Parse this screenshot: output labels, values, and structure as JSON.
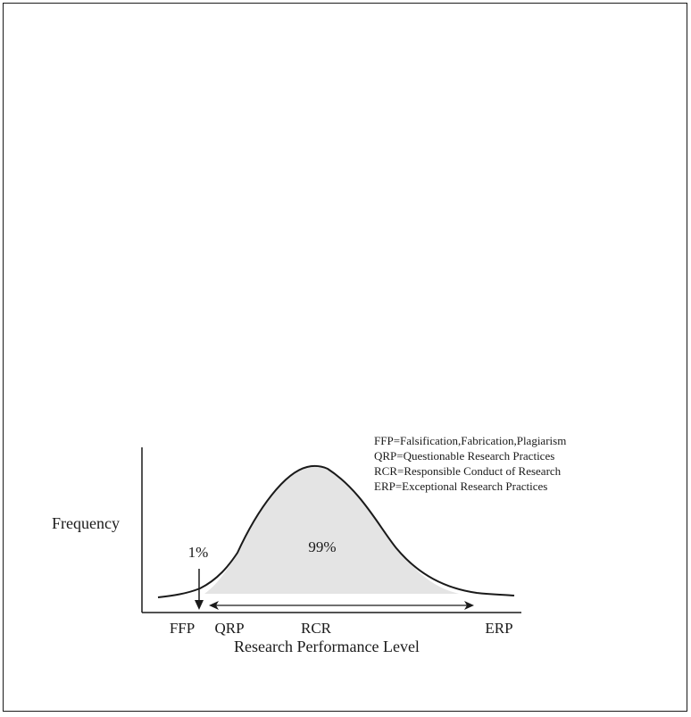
{
  "diagram": {
    "y_axis_label": "Frequency",
    "x_axis_label": "Research Performance Level",
    "categories": [
      "FFP",
      "QRP",
      "RCR",
      "ERP"
    ],
    "annotations": {
      "tail_percent": "1%",
      "body_percent": "99%"
    },
    "legend": [
      "FFP=Falsification,Fabrication,Plagiarism",
      "QRP=Questionable Research Practices",
      "RCR=Responsible Conduct of Research",
      "ERP=Exceptional Research Practices"
    ],
    "colors": {
      "line": "#1a1a1a",
      "shaded_area": "#e4e4e4",
      "background": "#ffffff"
    }
  }
}
